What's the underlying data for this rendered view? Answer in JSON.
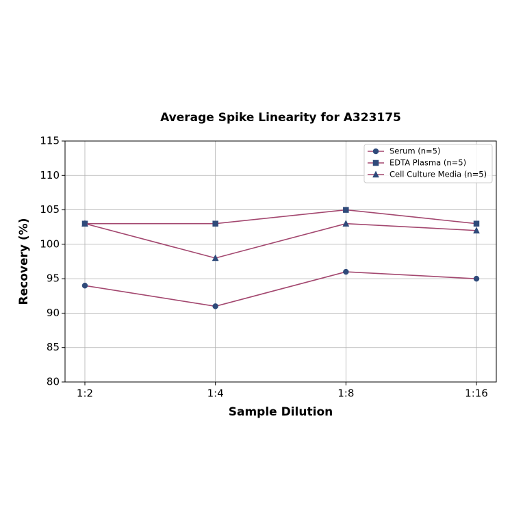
{
  "chart_data": {
    "type": "line",
    "title": "Average Spike Linearity for A323175",
    "x_label": "Sample Dilution",
    "y_label": "Recovery (%)",
    "categories": [
      "1:2",
      "1:4",
      "1:8",
      "1:16"
    ],
    "series": [
      {
        "name": "Serum (n=5)",
        "color": "#a3476f",
        "marker": "circle",
        "marker_color": "#2f4a7a",
        "values": [
          94,
          91,
          96,
          95
        ]
      },
      {
        "name": "EDTA Plasma (n=5)",
        "color": "#a3476f",
        "marker": "square",
        "marker_color": "#2f4a7a",
        "values": [
          103,
          103,
          105,
          103
        ]
      },
      {
        "name": "Cell Culture Media (n=5)",
        "color": "#a3476f",
        "marker": "triangle",
        "marker_color": "#2f4a7a",
        "values": [
          103,
          98,
          103,
          102
        ]
      }
    ],
    "ylim": [
      80,
      115
    ],
    "yticks": [
      80,
      85,
      90,
      95,
      100,
      105,
      110,
      115
    ],
    "grid": true,
    "legend": "upper-right"
  }
}
